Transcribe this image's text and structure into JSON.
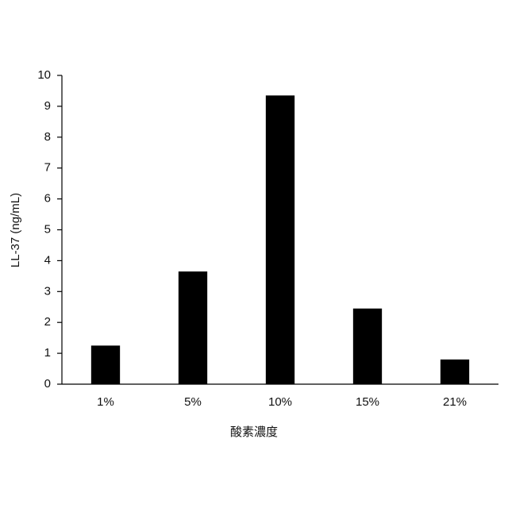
{
  "chart_data": {
    "type": "bar",
    "x_label": "酸素濃度",
    "y_label": "LL-37 (ng/mL)",
    "categories": [
      "1%",
      "5%",
      "10%",
      "15%",
      "21%"
    ],
    "values": [
      1.25,
      3.65,
      9.35,
      2.45,
      0.8
    ],
    "color": "#000000",
    "ylim": [
      0,
      10
    ],
    "yticks": [
      0,
      1,
      2,
      3,
      4,
      5,
      6,
      7,
      8,
      9,
      10
    ],
    "grid": false
  }
}
